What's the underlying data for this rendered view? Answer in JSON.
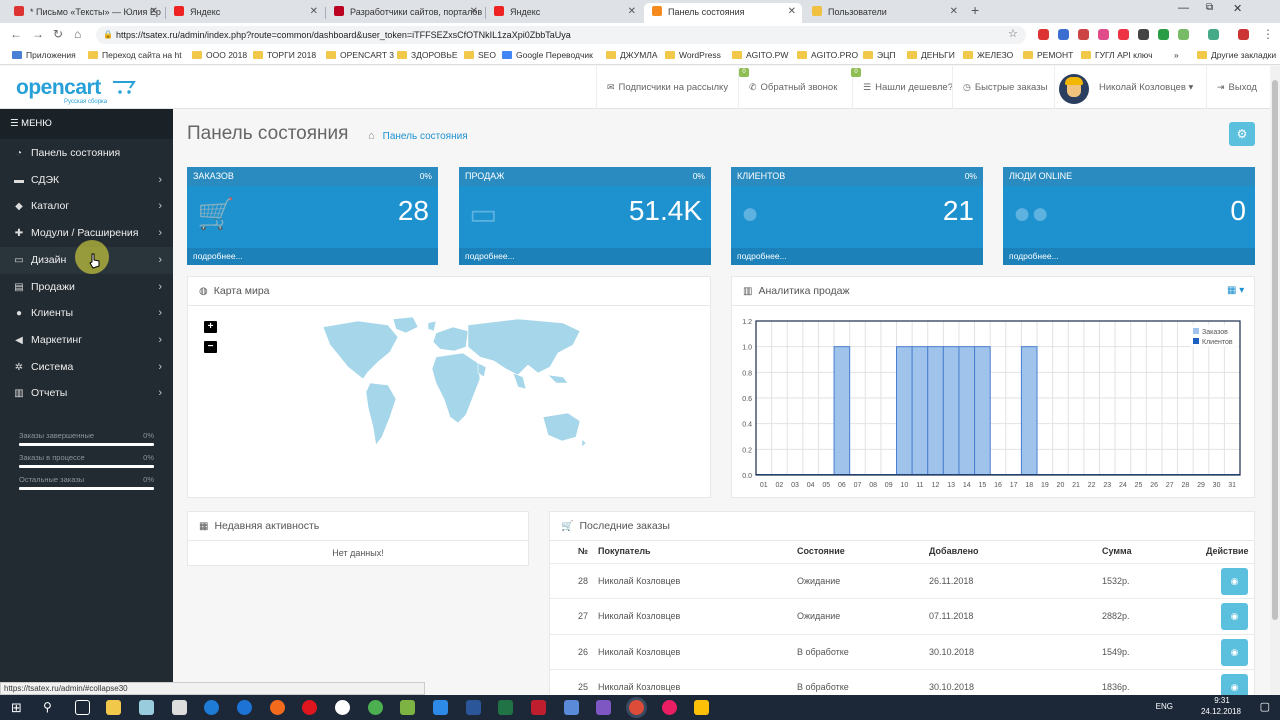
{
  "browser": {
    "tabs": [
      {
        "title": "* Письмо «Тексты» — Юлия Ер",
        "fav": "#d33"
      },
      {
        "title": "Яндекс",
        "fav": "#e22"
      },
      {
        "title": "Разработчики сайтов, порталов",
        "fav": "#b02"
      },
      {
        "title": "Яндекс",
        "fav": "#e22"
      },
      {
        "title": "Панель состояния",
        "fav": "#f58a1f"
      },
      {
        "title": "Пользователи",
        "fav": "#f0c040"
      }
    ],
    "url": "https://tsatex.ru/admin/index.php?route=common/dashboard&user_token=iTFFSEZxsCfOTNkIL1zaXpi0ZbbTaUya",
    "bookmarks": [
      "Приложения",
      "Переход сайта на ht",
      "ООО 2018",
      "ТОРГИ 2018",
      "OPENCART 3",
      "ЗДОРОВЬЕ",
      "SEO",
      "Google Переводчик",
      "ДЖУМЛА",
      "WordPress",
      "AGITO.PW",
      "AGITO.PRO",
      "ЭЦП",
      "ДЕНЬГИ",
      "ЖЕЛЕЗО",
      "РЕМОНТ",
      "ГУГЛ API ключ",
      "Другие закладки"
    ],
    "status_url": "https://tsatex.ru/admin/#collapse30"
  },
  "header": {
    "logo": "opencart",
    "logo_sub": "Русская сборка",
    "nav": [
      "Подписчики на рассылку",
      "Обратный звонок",
      "Нашли дешевле?",
      "Быстрые заказы"
    ],
    "badges": [
      "0",
      "0"
    ],
    "user": "Николай Козловцев",
    "logout": "Выход"
  },
  "sidebar": {
    "menu_label": "МЕНЮ",
    "items": [
      {
        "label": "Панель состояния",
        "icon": "dashboard-icon"
      },
      {
        "label": "СДЭК",
        "icon": "truck-icon"
      },
      {
        "label": "Каталог",
        "icon": "tag-icon"
      },
      {
        "label": "Модули / Расширения",
        "icon": "puzzle-icon"
      },
      {
        "label": "Дизайн",
        "icon": "monitor-icon"
      },
      {
        "label": "Продажи",
        "icon": "cart-icon"
      },
      {
        "label": "Клиенты",
        "icon": "user-icon"
      },
      {
        "label": "Маркетинг",
        "icon": "share-icon"
      },
      {
        "label": "Система",
        "icon": "gear-icon"
      },
      {
        "label": "Отчеты",
        "icon": "bar-chart-icon"
      }
    ],
    "progress": [
      {
        "label": "Заказы завершенные",
        "pct": "0%"
      },
      {
        "label": "Заказы в процессе",
        "pct": "0%"
      },
      {
        "label": "Остальные заказы",
        "pct": "0%"
      }
    ]
  },
  "page": {
    "title": "Панель состояния",
    "breadcrumb": "Панель состояния"
  },
  "tiles": [
    {
      "title": "ЗАКАЗОВ",
      "pct": "0%",
      "value": "28",
      "more": "подробнее..."
    },
    {
      "title": "ПРОДАЖ",
      "pct": "0%",
      "value": "51.4K",
      "more": "подробнее..."
    },
    {
      "title": "КЛИЕНТОВ",
      "pct": "0%",
      "value": "21",
      "more": "подробнее..."
    },
    {
      "title": "ЛЮДИ ONLINE",
      "pct": "",
      "value": "0",
      "more": "подробнее..."
    }
  ],
  "map_panel": {
    "title": "Карта мира",
    "zoom_in": "+",
    "zoom_out": "−"
  },
  "sales_panel": {
    "title": "Аналитика продаж"
  },
  "activity_panel": {
    "title": "Недавняя активность",
    "empty": "Нет данных!"
  },
  "orders_panel": {
    "title": "Последние заказы",
    "columns": [
      "№",
      "Покупатель",
      "Состояние",
      "Добавлено",
      "Сумма",
      "Действие"
    ],
    "rows": [
      {
        "id": "28",
        "customer": "Николай Козловцев",
        "status": "Ожидание",
        "date": "26.11.2018",
        "total": "1532р."
      },
      {
        "id": "27",
        "customer": "Николай Козловцев",
        "status": "Ожидание",
        "date": "07.11.2018",
        "total": "2882р."
      },
      {
        "id": "26",
        "customer": "Николай Козловцев",
        "status": "В обработке",
        "date": "30.10.2018",
        "total": "1549р."
      },
      {
        "id": "25",
        "customer": "Николай Козловцев",
        "status": "В обработке",
        "date": "30.10.2018",
        "total": "1836р."
      }
    ]
  },
  "chart_data": {
    "type": "bar",
    "categories": [
      "01",
      "02",
      "03",
      "04",
      "05",
      "06",
      "07",
      "08",
      "09",
      "10",
      "11",
      "12",
      "13",
      "14",
      "15",
      "16",
      "17",
      "18",
      "19",
      "20",
      "21",
      "22",
      "23",
      "24",
      "25",
      "26",
      "27",
      "28",
      "29",
      "30",
      "31"
    ],
    "series": [
      {
        "name": "Заказов",
        "values": [
          0,
          0,
          0,
          0,
          0,
          1,
          0,
          0,
          0,
          1,
          1,
          1,
          1,
          1,
          1,
          0,
          0,
          1,
          0,
          0,
          0,
          0,
          0,
          0,
          0,
          0,
          0,
          0,
          0,
          0,
          0
        ]
      },
      {
        "name": "Клиентов",
        "values": [
          0,
          0,
          0,
          0,
          0,
          0,
          0,
          0,
          0,
          0,
          0,
          0,
          0,
          0,
          0,
          0,
          0,
          0,
          0,
          0,
          0,
          0,
          0,
          0,
          0,
          0,
          0,
          0,
          0,
          0,
          0
        ]
      }
    ],
    "yticks": [
      "0.0",
      "0.2",
      "0.4",
      "0.6",
      "0.8",
      "1.0",
      "1.2"
    ],
    "ylim": [
      0,
      1.2
    ],
    "legend": "top-right",
    "grid": true,
    "colors": {
      "orders": "#9fc3ea",
      "customers": "#1f5fbf"
    }
  },
  "taskbar": {
    "lang": "ENG",
    "time": "9:31",
    "date": "24.12.2018"
  }
}
